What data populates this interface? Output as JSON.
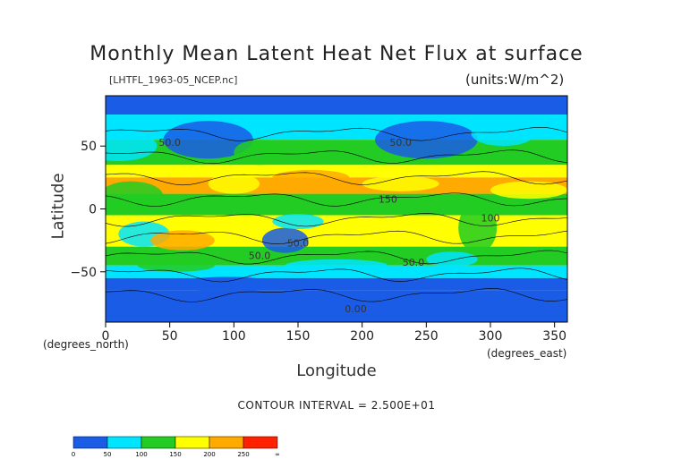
{
  "chart_data": {
    "type": "heatmap",
    "title": "Monthly Mean Latent Heat Net Flux at surface",
    "subtitle": "[LHTFL_1963-05_NCEP.nc]",
    "units_label": "(units:W/m^2)",
    "xlabel": "Longitude",
    "xlabel_sub": "(degrees_east)",
    "ylabel": "Latitude",
    "ylabel_sub": "(degrees_north)",
    "xlim": [
      0,
      360
    ],
    "ylim": [
      -90,
      90
    ],
    "x_ticks": [
      "0",
      "50",
      "100",
      "150",
      "200",
      "250",
      "300",
      "350"
    ],
    "y_ticks": [
      "50",
      "0",
      "−50"
    ],
    "contour_interval": "CONTOUR INTERVAL = 2.500E+01",
    "contour_labels": [
      "50.0",
      "50.0",
      "150",
      "100",
      "50.0",
      "50.0",
      "0.00",
      "50.0"
    ],
    "colorbar": {
      "levels": [
        "0",
        "50",
        "100",
        "150",
        "200",
        "250",
        "∞"
      ],
      "colors": [
        "#1a5ce6",
        "#00e5ff",
        "#22cc22",
        "#ffff00",
        "#ffaa00",
        "#ff2200"
      ]
    },
    "zonal_mean_bands": [
      {
        "lat": [
          75,
          90
        ],
        "level": 0
      },
      {
        "lat": [
          55,
          75
        ],
        "level": 1
      },
      {
        "lat": [
          35,
          55
        ],
        "level": 2
      },
      {
        "lat": [
          25,
          35
        ],
        "level": 3
      },
      {
        "lat": [
          12,
          25
        ],
        "level": 4
      },
      {
        "lat": [
          0,
          12
        ],
        "level": 2
      },
      {
        "lat": [
          -5,
          0
        ],
        "level": 2
      },
      {
        "lat": [
          -30,
          -5
        ],
        "level": 3
      },
      {
        "lat": [
          -45,
          -30
        ],
        "level": 2
      },
      {
        "lat": [
          -55,
          -45
        ],
        "level": 1
      },
      {
        "lat": [
          -65,
          -55
        ],
        "level": 0
      },
      {
        "lat": [
          -90,
          -65
        ],
        "level": 0
      }
    ]
  }
}
